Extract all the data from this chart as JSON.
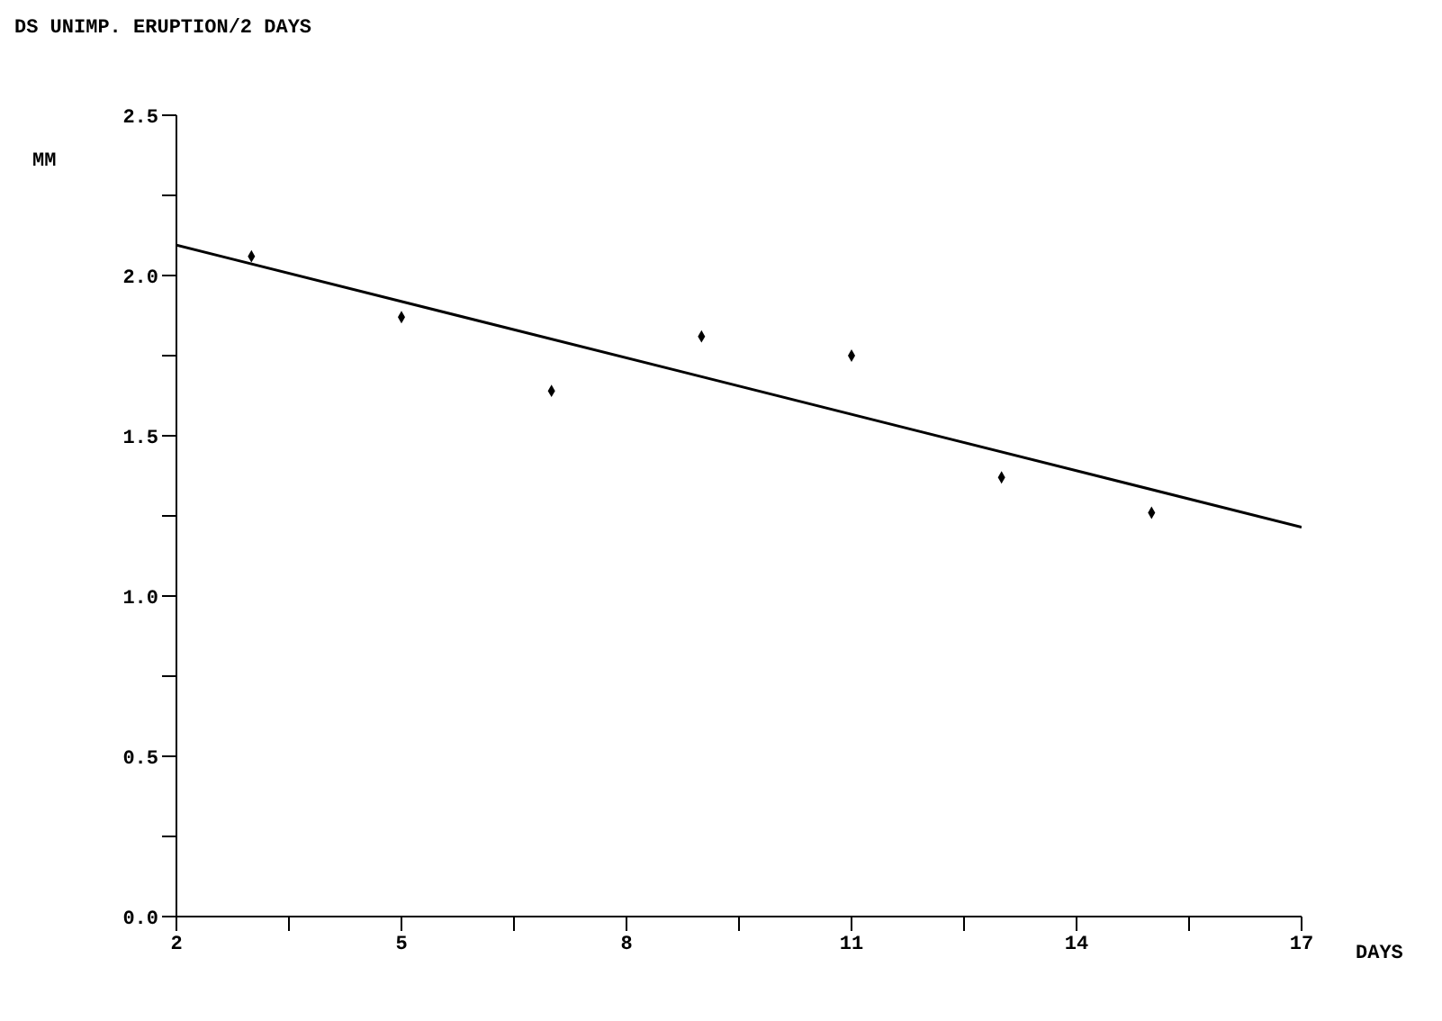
{
  "chart_data": {
    "type": "scatter",
    "title": "DS UNIMP. ERUPTION/2 DAYS",
    "xlabel": "DAYS",
    "ylabel": "MM",
    "series": [
      {
        "color": "#000000",
        "marker": "diamond",
        "x": [
          3,
          5,
          7,
          9,
          11,
          13,
          15
        ],
        "values": [
          2.06,
          1.87,
          1.64,
          1.81,
          1.75,
          1.37,
          1.26
        ]
      },
      {
        "type": "line",
        "color": "#000000",
        "line_style": "solid",
        "x": [
          2,
          17
        ],
        "values": [
          2.095,
          1.215
        ]
      }
    ],
    "xlim": [
      2,
      17
    ],
    "ylim": [
      0,
      2.5
    ],
    "xticks": [
      2,
      {
        "value": 3.5,
        "label": null
      },
      5,
      {
        "value": 6.5,
        "label": null
      },
      8,
      {
        "value": 9.5,
        "label": null
      },
      11,
      {
        "value": 12.5,
        "label": null
      },
      14,
      {
        "value": 15.5,
        "label": null
      },
      17
    ],
    "yticks": [
      {
        "value": 0,
        "label": "0.0"
      },
      {
        "value": 0.25,
        "label": null
      },
      {
        "value": 0.5,
        "label": "0.5"
      },
      {
        "value": 0.75,
        "label": null
      },
      {
        "value": 1,
        "label": "1.0"
      },
      {
        "value": 1.25,
        "label": null
      },
      {
        "value": 1.5,
        "label": "1.5"
      },
      {
        "value": 1.75,
        "label": null
      },
      {
        "value": 2,
        "label": "2.0"
      },
      {
        "value": 2.25,
        "label": null
      },
      {
        "value": 2.5,
        "label": "2.5"
      }
    ],
    "grid": false,
    "legend": false
  }
}
